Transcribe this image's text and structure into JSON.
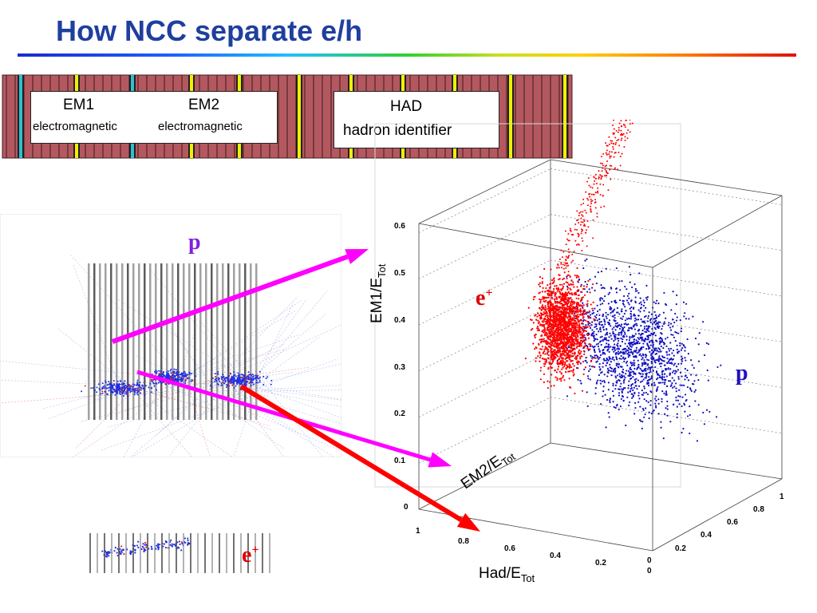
{
  "title": "How NCC separate e/h",
  "detector": {
    "em1_label": "EM1",
    "em1_sub": "electromagnetic",
    "em2_label": "EM2",
    "em2_sub": "electromagnetic",
    "had_label": "HAD",
    "had_sub": "hadron identifier"
  },
  "labels": {
    "p_event": "p",
    "e_event": "e",
    "e_plot": "e",
    "p_plot": "p",
    "superscript_plus": "+"
  },
  "axes": {
    "z_title": "EM1/E",
    "y_title": "EM2/E",
    "x_title": "Had/E",
    "tot_sub": "Tot",
    "z_ticks": [
      "0",
      "0.1",
      "0.2",
      "0.3",
      "0.4",
      "0.5",
      "0.6"
    ],
    "x_ticks": [
      "1",
      "0.8",
      "0.6",
      "0.4",
      "0.2",
      "0"
    ],
    "y_ticks": [
      "0",
      "0.2",
      "0.4",
      "0.6",
      "0.8",
      "1"
    ]
  },
  "colors": {
    "title": "#1f3f9f",
    "absorber": "#b45860",
    "sensor": "#f0f000",
    "em_gap": "#30c0d0",
    "electron": "#ff0000",
    "proton": "#1010c0",
    "arrow_magenta": "#ff00ff",
    "arrow_red": "#ff0000"
  }
}
